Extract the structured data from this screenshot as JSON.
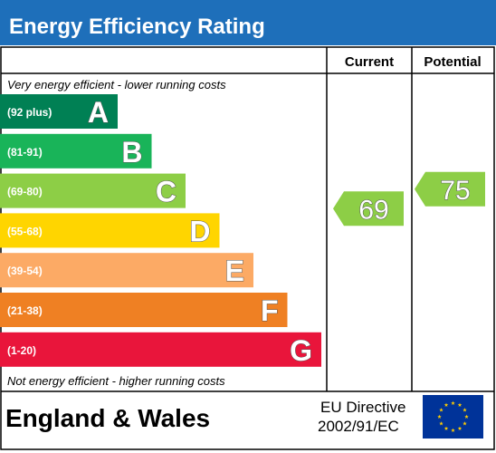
{
  "chart_data": {
    "type": "bar",
    "title": "Energy Efficiency Rating",
    "top_note": "Very energy efficient - lower running costs",
    "bottom_note": "Not energy efficient - higher running costs",
    "columns": [
      "Current",
      "Potential"
    ],
    "bands": [
      {
        "letter": "A",
        "range": "(92 plus)",
        "min": 92,
        "max": 100,
        "color": "#008054"
      },
      {
        "letter": "B",
        "range": "(81-91)",
        "min": 81,
        "max": 91,
        "color": "#19b459"
      },
      {
        "letter": "C",
        "range": "(69-80)",
        "min": 69,
        "max": 80,
        "color": "#8dce46"
      },
      {
        "letter": "D",
        "range": "(55-68)",
        "min": 55,
        "max": 68,
        "color": "#ffd500"
      },
      {
        "letter": "E",
        "range": "(39-54)",
        "min": 39,
        "max": 54,
        "color": "#fcaa65"
      },
      {
        "letter": "F",
        "range": "(21-38)",
        "min": 21,
        "max": 38,
        "color": "#ef8023"
      },
      {
        "letter": "G",
        "range": "(1-20)",
        "min": 1,
        "max": 20,
        "color": "#e9153b"
      }
    ],
    "current": {
      "value": 69,
      "band": "C",
      "color": "#8dce46"
    },
    "potential": {
      "value": 75,
      "band": "C",
      "color": "#8dce46"
    },
    "region": "England & Wales",
    "directive_line1": "EU Directive",
    "directive_line2": "2002/91/EC"
  },
  "colors": {
    "header_bg": "#1e6fba",
    "border": "#000000",
    "flag_bg": "#003399",
    "flag_stars": "#ffcc00",
    "text_outline": "#555555"
  },
  "icons": {
    "flag": "eu-flag-icon"
  }
}
